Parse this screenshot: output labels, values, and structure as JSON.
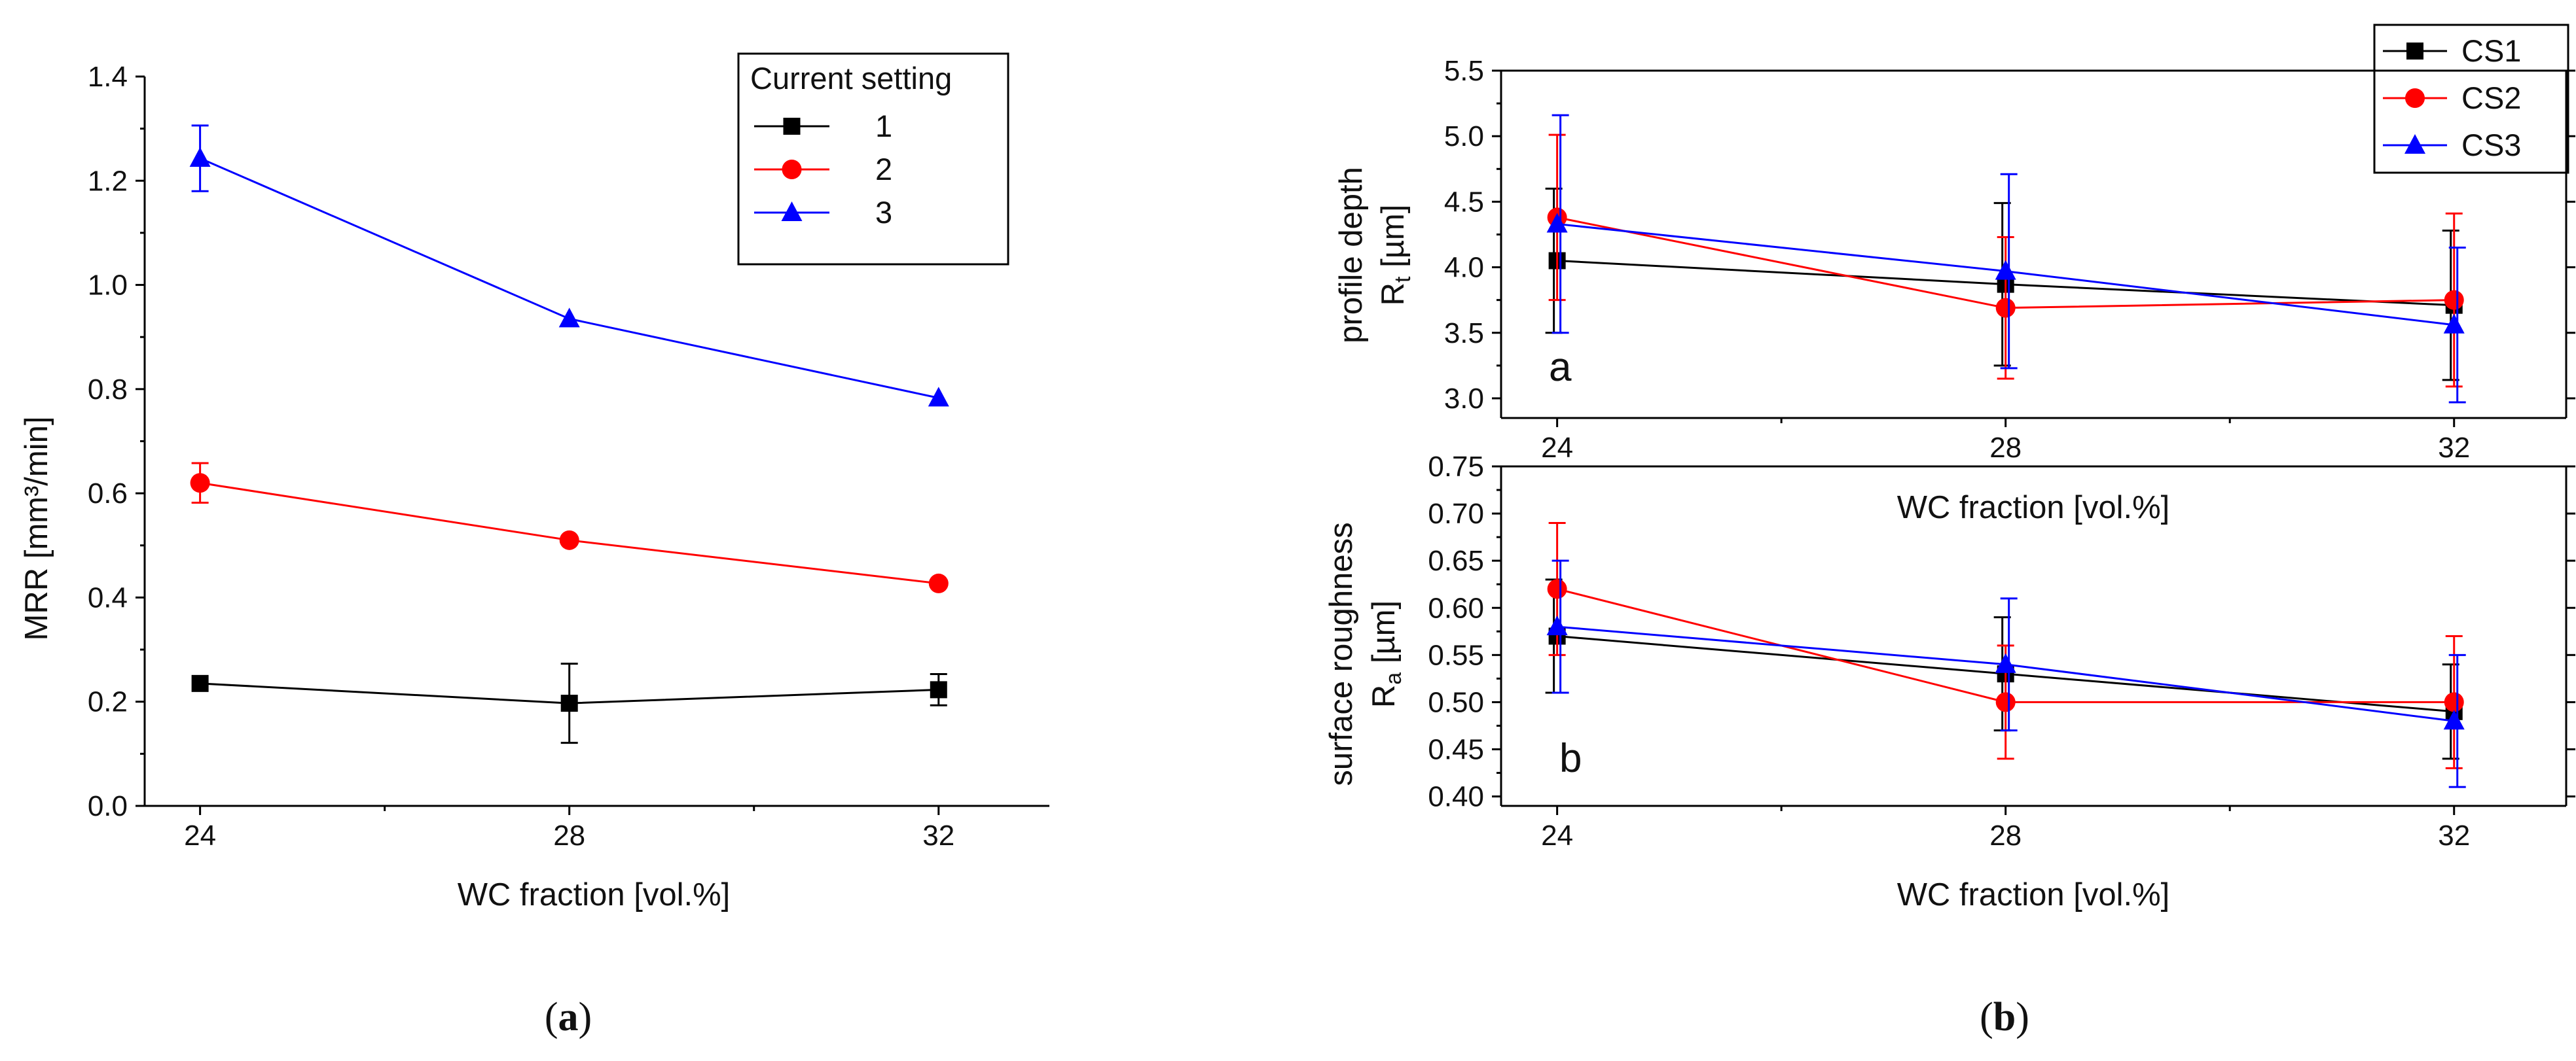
{
  "figure": {
    "captions": [
      {
        "open": "(",
        "letter": "a",
        "close": ")"
      },
      {
        "open": "(",
        "letter": "b",
        "close": ")"
      }
    ]
  },
  "chart_data": [
    {
      "type": "line",
      "title": "",
      "xlabel": "WC fraction [vol.%]",
      "ylabel": "MRR [mm³/min]",
      "x": [
        24,
        28,
        32
      ],
      "x_ticks": [
        "24",
        "28",
        "32"
      ],
      "xlim": [
        23.4,
        33.2
      ],
      "ylim": [
        0.0,
        1.4
      ],
      "y_ticks": [
        "0.0",
        "0.2",
        "0.4",
        "0.6",
        "0.8",
        "1.0",
        "1.2",
        "1.4"
      ],
      "grid": false,
      "legend": {
        "title": "Current setting",
        "placement": "top-right"
      },
      "series": [
        {
          "name": "1",
          "color": "#000000",
          "marker": "square",
          "values": [
            0.235,
            0.197,
            0.223
          ],
          "errors": [
            0.0,
            0.076,
            0.03
          ]
        },
        {
          "name": "2",
          "color": "#ff0000",
          "marker": "circle",
          "values": [
            0.62,
            0.51,
            0.427
          ],
          "errors": [
            0.038,
            0.0,
            0.0
          ]
        },
        {
          "name": "3",
          "color": "#0000ff",
          "marker": "triangle",
          "values": [
            1.243,
            0.935,
            0.783
          ],
          "errors": [
            0.063,
            0.0,
            0.0
          ]
        }
      ]
    },
    {
      "type": "line",
      "title": "",
      "panel_label": "a",
      "xlabel": "",
      "ylabel_lines": [
        "profile depth",
        "R",
        "t",
        " [µm]"
      ],
      "x": [
        24,
        28,
        32
      ],
      "x_ticks": [
        "24",
        "28",
        "32"
      ],
      "xlim": [
        23.5,
        33.0
      ],
      "ylim": [
        2.85,
        5.5
      ],
      "y_ticks": [
        "3.0",
        "3.5",
        "4.0",
        "4.5",
        "5.0",
        "5.5"
      ],
      "grid": false,
      "legend": {
        "placement": "top-right"
      },
      "series": [
        {
          "name": "CS1",
          "color": "#000000",
          "marker": "square",
          "values": [
            4.05,
            3.87,
            3.71
          ],
          "errors": [
            0.55,
            0.62,
            0.57
          ]
        },
        {
          "name": "CS2",
          "color": "#ff0000",
          "marker": "circle",
          "values": [
            4.38,
            3.69,
            3.75
          ],
          "errors": [
            0.63,
            0.54,
            0.66
          ]
        },
        {
          "name": "CS3",
          "color": "#0000ff",
          "marker": "triangle",
          "values": [
            4.33,
            3.97,
            3.56
          ],
          "errors": [
            0.83,
            0.74,
            0.59
          ]
        }
      ]
    },
    {
      "type": "line",
      "title": "",
      "panel_label": "b",
      "xlabel": "WC fraction [vol.%]",
      "ylabel_lines": [
        "surface roughness",
        "R",
        "a",
        " [µm]"
      ],
      "x": [
        24,
        28,
        32
      ],
      "x_ticks": [
        "24",
        "28",
        "32"
      ],
      "xlim": [
        23.5,
        33.0
      ],
      "ylim": [
        0.39,
        0.75
      ],
      "y_ticks": [
        "0.40",
        "0.45",
        "0.50",
        "0.55",
        "0.60",
        "0.65",
        "0.70",
        "0.75"
      ],
      "grid": false,
      "series": [
        {
          "name": "CS1",
          "color": "#000000",
          "marker": "square",
          "values": [
            0.57,
            0.53,
            0.49
          ],
          "errors": [
            0.06,
            0.06,
            0.05
          ]
        },
        {
          "name": "CS2",
          "color": "#ff0000",
          "marker": "circle",
          "values": [
            0.62,
            0.5,
            0.5
          ],
          "errors": [
            0.07,
            0.06,
            0.07
          ]
        },
        {
          "name": "CS3",
          "color": "#0000ff",
          "marker": "triangle",
          "values": [
            0.58,
            0.54,
            0.48
          ],
          "errors": [
            0.07,
            0.07,
            0.07
          ]
        }
      ]
    }
  ]
}
